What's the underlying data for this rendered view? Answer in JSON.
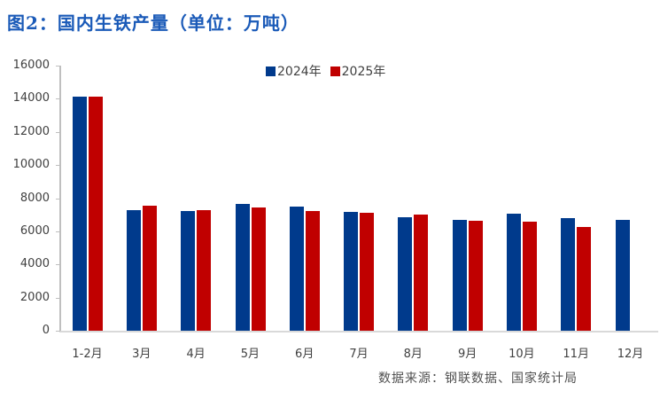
{
  "title": "图2：国内生铁产量（单位：万吨）",
  "source": "数据来源：钢联数据、国家统计局",
  "colors": {
    "series_2024": "#003a8c",
    "series_2025": "#c00000",
    "title": "#1a5ab8"
  },
  "chart_data": {
    "type": "bar",
    "title": "图2：国内生铁产量（单位：万吨）",
    "xlabel": "",
    "ylabel": "",
    "ylim": [
      0,
      16000
    ],
    "yticks": [
      0,
      2000,
      4000,
      6000,
      8000,
      10000,
      12000,
      14000,
      16000
    ],
    "grid": false,
    "legend_position": "top",
    "categories": [
      "1-2月",
      "3月",
      "4月",
      "5月",
      "6月",
      "7月",
      "8月",
      "9月",
      "10月",
      "11月",
      "12月"
    ],
    "series": [
      {
        "name": "2024年",
        "color": "#003a8c",
        "values": [
          14120,
          7290,
          7240,
          7670,
          7510,
          7170,
          6850,
          6690,
          7060,
          6810,
          6700
        ]
      },
      {
        "name": "2025年",
        "color": "#c00000",
        "values": [
          14120,
          7560,
          7290,
          7440,
          7240,
          7120,
          7030,
          6640,
          6580,
          6280,
          null
        ]
      }
    ]
  }
}
